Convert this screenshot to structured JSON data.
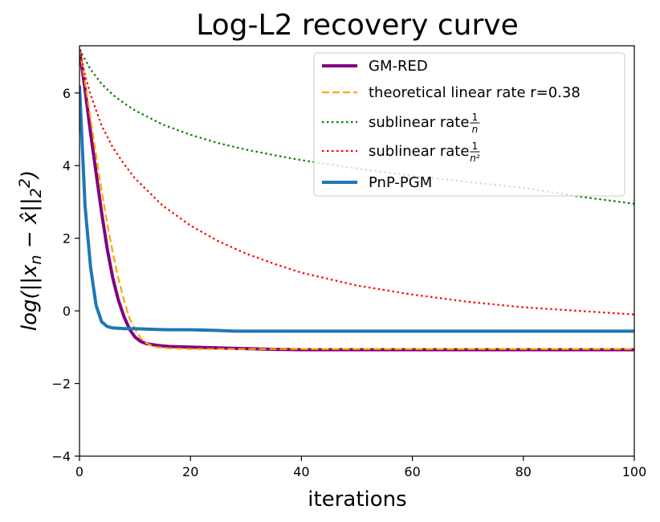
{
  "chart_data": {
    "type": "line",
    "title": "Log-L2 recovery curve",
    "xlabel": "iterations",
    "ylabel": "log(||x_n − x̂||₂²)",
    "xlim": [
      0,
      100
    ],
    "ylim": [
      -4,
      7.3
    ],
    "xticks": [
      0,
      20,
      40,
      60,
      80,
      100
    ],
    "yticks": [
      -4,
      -2,
      0,
      2,
      4,
      6
    ],
    "grid": false,
    "legend_position": "top-right",
    "series": [
      {
        "name": "GM-RED",
        "color": "#800080",
        "style": "solid",
        "width": "thick",
        "x": [
          0,
          1,
          2,
          3,
          4,
          5,
          6,
          7,
          8,
          9,
          10,
          11,
          12,
          14,
          16,
          20,
          25,
          30,
          35,
          40,
          50,
          60,
          70,
          80,
          90,
          100
        ],
        "y": [
          7.2,
          6.1,
          4.9,
          3.8,
          2.7,
          1.7,
          0.9,
          0.3,
          -0.15,
          -0.5,
          -0.72,
          -0.84,
          -0.9,
          -0.95,
          -0.98,
          -1.0,
          -1.02,
          -1.04,
          -1.06,
          -1.07,
          -1.07,
          -1.07,
          -1.07,
          -1.07,
          -1.07,
          -1.07
        ]
      },
      {
        "name": "theoretical linear rate r=0.38",
        "color": "#FFA500",
        "style": "dashed",
        "width": "normal",
        "x": [
          0,
          1,
          2,
          3,
          4,
          5,
          6,
          7,
          8,
          9,
          10,
          11,
          12,
          13,
          14,
          16,
          18,
          20,
          25,
          30,
          40,
          60,
          80,
          100
        ],
        "y": [
          7.2,
          6.3,
          5.3,
          4.3,
          3.3,
          2.4,
          1.6,
          0.9,
          0.3,
          -0.2,
          -0.5,
          -0.75,
          -0.88,
          -0.96,
          -1.0,
          -1.03,
          -1.04,
          -1.05,
          -1.05,
          -1.05,
          -1.05,
          -1.05,
          -1.05,
          -1.05
        ]
      },
      {
        "name": "sublinear rate 1/n",
        "color": "#008000",
        "style": "dotted",
        "width": "normal",
        "x": [
          0,
          2,
          4,
          6,
          8,
          10,
          15,
          20,
          25,
          30,
          35,
          40,
          50,
          60,
          70,
          80,
          90,
          100
        ],
        "y": [
          7.2,
          6.65,
          6.25,
          5.95,
          5.72,
          5.52,
          5.13,
          4.85,
          4.62,
          4.44,
          4.29,
          4.15,
          3.92,
          3.72,
          3.55,
          3.39,
          3.15,
          2.95
        ]
      },
      {
        "name": "sublinear rate 1/n²",
        "color": "#FF0000",
        "style": "dotted",
        "width": "normal",
        "x": [
          0,
          1,
          2,
          4,
          6,
          8,
          10,
          15,
          20,
          25,
          30,
          35,
          40,
          50,
          60,
          70,
          80,
          90,
          100
        ],
        "y": [
          7.2,
          6.5,
          5.95,
          5.1,
          4.5,
          4.05,
          3.65,
          2.9,
          2.35,
          1.92,
          1.58,
          1.3,
          1.05,
          0.7,
          0.45,
          0.25,
          0.1,
          0.0,
          -0.1
        ]
      },
      {
        "name": "PnP-PGM",
        "color": "#1F77B4",
        "style": "solid",
        "width": "thick",
        "x": [
          0,
          1,
          2,
          3,
          4,
          5,
          6,
          7,
          8,
          10,
          12,
          14,
          16,
          20,
          25,
          28,
          30,
          40,
          50,
          60,
          70,
          80,
          90,
          100
        ],
        "y": [
          6.2,
          2.9,
          1.2,
          0.15,
          -0.3,
          -0.43,
          -0.47,
          -0.48,
          -0.49,
          -0.49,
          -0.5,
          -0.51,
          -0.52,
          -0.52,
          -0.54,
          -0.56,
          -0.56,
          -0.56,
          -0.56,
          -0.56,
          -0.56,
          -0.56,
          -0.56,
          -0.56
        ]
      }
    ]
  }
}
